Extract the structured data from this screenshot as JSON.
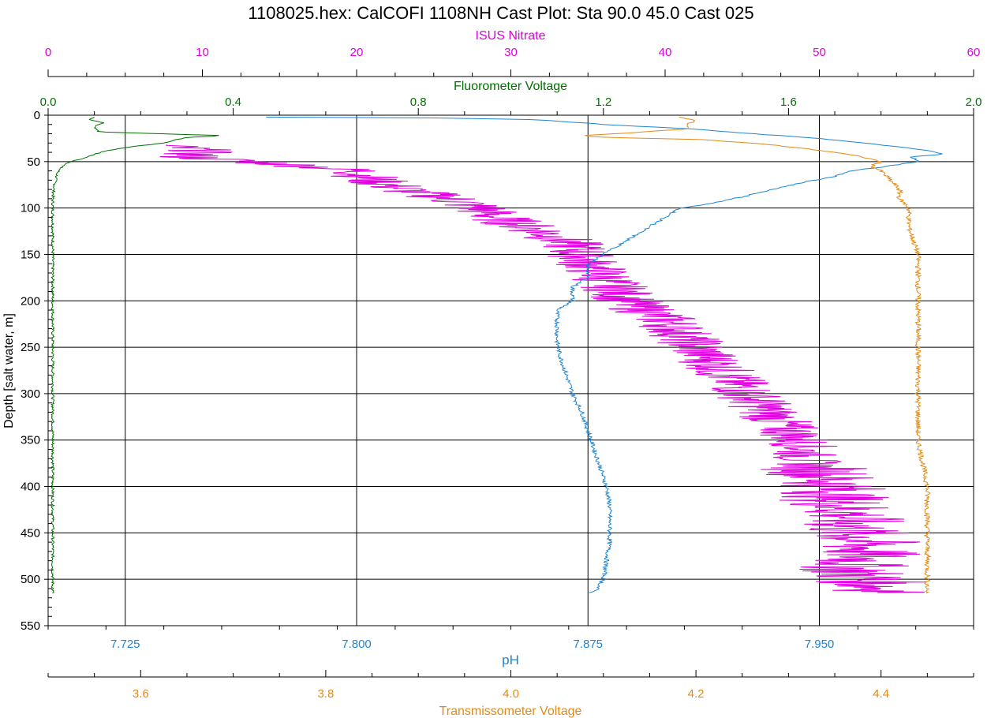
{
  "chart_data": {
    "type": "line",
    "title": "1108025.hex: CalCOFI 1108NH Cast Plot: Sta 90.0 45.0 Cast 025",
    "ylabel": "Depth [salt water, m]",
    "y_inverted": true,
    "ylim": [
      0,
      550
    ],
    "yticks": [
      "0",
      "50",
      "100",
      "150",
      "200",
      "250",
      "300",
      "350",
      "400",
      "450",
      "500",
      "550"
    ],
    "grid": true,
    "axes": {
      "nitrate": {
        "label": "ISUS Nitrate",
        "position": "top",
        "color": "#e000e0",
        "range": [
          0,
          60
        ],
        "ticks": [
          0,
          10,
          20,
          30,
          40,
          50,
          60
        ],
        "tick_labels": [
          "0",
          "10",
          "20",
          "30",
          "40",
          "50",
          "60"
        ]
      },
      "fluor": {
        "label": "Fluorometer Voltage",
        "position": "top",
        "color": "#007000",
        "range": [
          0,
          2
        ],
        "ticks": [
          0,
          0.4,
          0.8,
          1.2,
          1.6,
          2.0
        ],
        "tick_labels": [
          "0.0",
          "0.4",
          "0.8",
          "1.2",
          "1.6",
          "2.0"
        ]
      },
      "ph": {
        "label": "pH",
        "position": "bottom",
        "color": "#1e84d0",
        "range": [
          7.7,
          8.0
        ],
        "ticks": [
          7.725,
          7.8,
          7.875,
          7.95
        ],
        "tick_labels": [
          "7.725",
          "7.800",
          "7.875",
          "7.950"
        ]
      },
      "trans": {
        "label": "Transmissometer Voltage",
        "position": "bottom",
        "color": "#e08a18",
        "range": [
          3.5,
          4.5
        ],
        "ticks": [
          3.6,
          3.8,
          4.0,
          4.2,
          4.4
        ],
        "tick_labels": [
          "3.6",
          "3.8",
          "4.0",
          "4.2",
          "4.4"
        ]
      }
    },
    "series": [
      {
        "axis": "fluor",
        "color": "#007000",
        "points": [
          [
            0.1,
            2
          ],
          [
            0.09,
            5
          ],
          [
            0.12,
            8
          ],
          [
            0.1,
            12
          ],
          [
            0.11,
            18
          ],
          [
            0.38,
            22
          ],
          [
            0.3,
            24
          ],
          [
            0.28,
            26
          ],
          [
            0.25,
            30
          ],
          [
            0.18,
            34
          ],
          [
            0.13,
            38
          ],
          [
            0.1,
            42
          ],
          [
            0.08,
            46
          ],
          [
            0.05,
            50
          ],
          [
            0.03,
            55
          ],
          [
            0.02,
            62
          ],
          [
            0.015,
            72
          ],
          [
            0.012,
            80
          ],
          [
            0.01,
            90
          ],
          [
            0.01,
            100
          ],
          [
            0.01,
            200
          ],
          [
            0.01,
            300
          ],
          [
            0.01,
            400
          ],
          [
            0.01,
            515
          ]
        ]
      },
      {
        "axis": "nitrate",
        "color": "#e000e0",
        "points": [
          [
            7,
            32
          ],
          [
            10,
            38
          ],
          [
            9,
            45
          ],
          [
            13,
            50
          ],
          [
            17,
            55
          ],
          [
            20,
            60
          ],
          [
            21,
            70
          ],
          [
            23,
            80
          ],
          [
            26,
            90
          ],
          [
            28,
            100
          ],
          [
            29,
            110
          ],
          [
            32,
            125
          ],
          [
            34,
            140
          ],
          [
            35,
            160
          ],
          [
            36,
            175
          ],
          [
            37,
            190
          ],
          [
            38,
            205
          ],
          [
            40,
            220
          ],
          [
            41,
            235
          ],
          [
            42,
            250
          ],
          [
            43,
            265
          ],
          [
            44,
            280
          ],
          [
            45,
            295
          ],
          [
            46,
            310
          ],
          [
            47,
            325
          ],
          [
            48,
            340
          ],
          [
            49,
            355
          ],
          [
            49,
            370
          ],
          [
            50,
            385
          ],
          [
            51,
            400
          ],
          [
            51,
            415
          ],
          [
            52,
            430
          ],
          [
            52,
            445
          ],
          [
            53,
            460
          ],
          [
            53,
            475
          ],
          [
            52,
            490
          ],
          [
            53,
            500
          ],
          [
            54,
            510
          ],
          [
            55,
            515
          ]
        ]
      },
      {
        "axis": "ph",
        "color": "#1e84d0",
        "points": [
          [
            7.77,
            2
          ],
          [
            7.83,
            3
          ],
          [
            7.86,
            5
          ],
          [
            7.88,
            10
          ],
          [
            7.91,
            15
          ],
          [
            7.92,
            18
          ],
          [
            7.95,
            25
          ],
          [
            7.97,
            32
          ],
          [
            7.985,
            38
          ],
          [
            7.99,
            42
          ],
          [
            7.98,
            45
          ],
          [
            7.982,
            50
          ],
          [
            7.97,
            56
          ],
          [
            7.96,
            60
          ],
          [
            7.955,
            66
          ],
          [
            7.945,
            72
          ],
          [
            7.935,
            80
          ],
          [
            7.925,
            88
          ],
          [
            7.915,
            95
          ],
          [
            7.905,
            100
          ],
          [
            7.9,
            110
          ],
          [
            7.895,
            120
          ],
          [
            7.89,
            130
          ],
          [
            7.885,
            140
          ],
          [
            7.88,
            150
          ],
          [
            7.875,
            160
          ],
          [
            7.875,
            175
          ],
          [
            7.87,
            185
          ],
          [
            7.87,
            200
          ],
          [
            7.865,
            210
          ],
          [
            7.865,
            230
          ],
          [
            7.865,
            245
          ],
          [
            7.866,
            260
          ],
          [
            7.868,
            280
          ],
          [
            7.87,
            300
          ],
          [
            7.873,
            320
          ],
          [
            7.875,
            340
          ],
          [
            7.877,
            360
          ],
          [
            7.879,
            380
          ],
          [
            7.881,
            400
          ],
          [
            7.882,
            420
          ],
          [
            7.882,
            440
          ],
          [
            7.882,
            460
          ],
          [
            7.881,
            480
          ],
          [
            7.88,
            500
          ],
          [
            7.878,
            510
          ],
          [
            7.876,
            515
          ]
        ]
      },
      {
        "axis": "trans",
        "color": "#e08a18",
        "points": [
          [
            4.18,
            2
          ],
          [
            4.2,
            5
          ],
          [
            4.19,
            10
          ],
          [
            4.19,
            15
          ],
          [
            4.08,
            22
          ],
          [
            4.1,
            24
          ],
          [
            4.2,
            26
          ],
          [
            4.26,
            30
          ],
          [
            4.31,
            35
          ],
          [
            4.35,
            40
          ],
          [
            4.38,
            45
          ],
          [
            4.4,
            50
          ],
          [
            4.39,
            55
          ],
          [
            4.4,
            60
          ],
          [
            4.41,
            70
          ],
          [
            4.42,
            80
          ],
          [
            4.42,
            90
          ],
          [
            4.43,
            100
          ],
          [
            4.43,
            120
          ],
          [
            4.44,
            150
          ],
          [
            4.44,
            200
          ],
          [
            4.44,
            250
          ],
          [
            4.44,
            300
          ],
          [
            4.44,
            350
          ],
          [
            4.45,
            400
          ],
          [
            4.45,
            450
          ],
          [
            4.45,
            500
          ],
          [
            4.45,
            515
          ]
        ]
      }
    ]
  }
}
